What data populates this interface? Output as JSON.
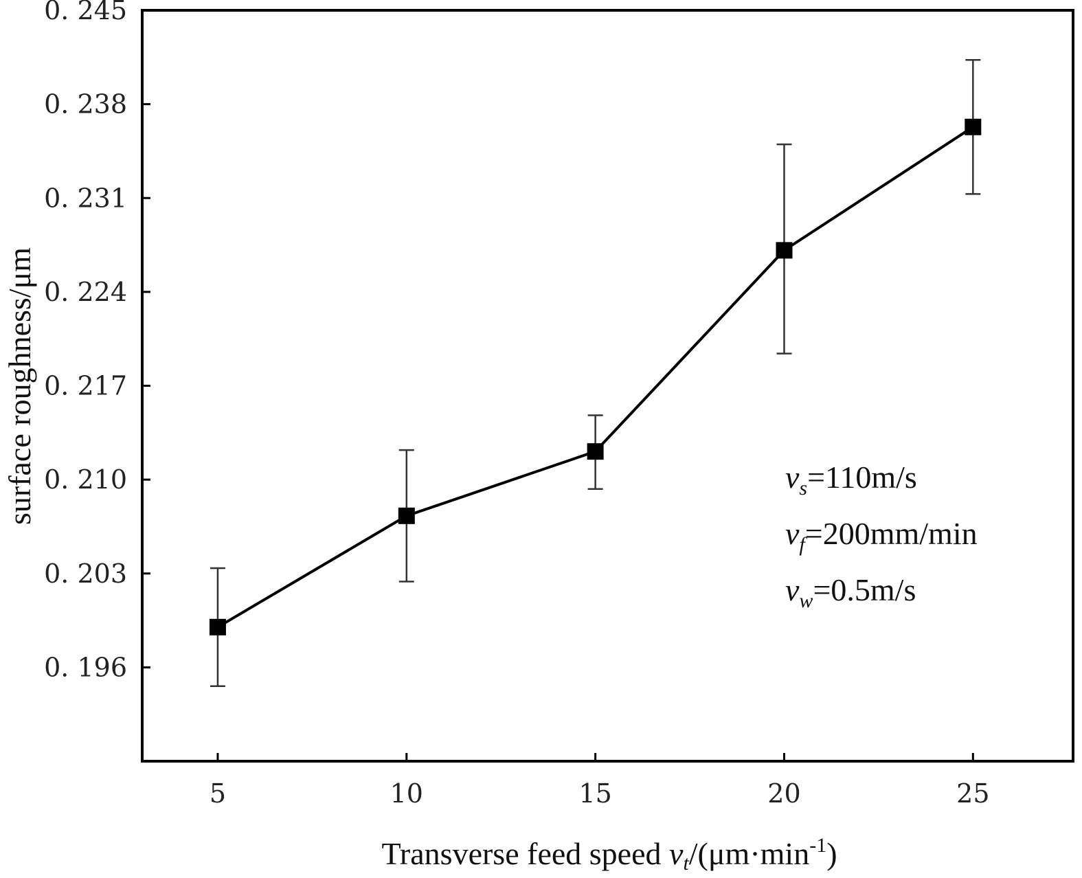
{
  "chart_data": {
    "type": "line",
    "title": "",
    "xlabel": {
      "main": "Transverse feed speed ",
      "symbol": "v",
      "symbol_sub": "t",
      "unit_pre": "/(μm·min",
      "unit_sup": "-1",
      "unit_post": ")"
    },
    "ylabel": "surface roughness/μm",
    "xlim": [
      3,
      27.65
    ],
    "ylim": [
      0.189,
      0.245
    ],
    "xticks": [
      5,
      10,
      15,
      20,
      25
    ],
    "xtick_labels": [
      "5",
      "10",
      "15",
      "20",
      "25"
    ],
    "yticks": [
      0.196,
      0.203,
      0.21,
      0.217,
      0.224,
      0.231,
      0.238,
      0.245
    ],
    "ytick_labels": [
      "0. 196",
      "0. 203",
      "0. 210",
      "0. 217",
      "0. 224",
      "0. 231",
      "0. 238",
      "0. 245"
    ],
    "grid": false,
    "legend": "none",
    "series": [
      {
        "x": [
          5,
          10,
          15,
          20,
          25
        ],
        "y": [
          0.199,
          0.2073,
          0.2121,
          0.2271,
          0.2363
        ],
        "err_low": [
          0.1946,
          0.2024,
          0.2093,
          0.2194,
          0.2313
        ],
        "err_high": [
          0.2034,
          0.2122,
          0.2148,
          0.235,
          0.2413
        ],
        "marker": "square",
        "color": "#000000"
      }
    ],
    "annotations": [
      {
        "symbol": "v",
        "sub": "s",
        "text": "=110m/s"
      },
      {
        "symbol": "v",
        "sub": "f",
        "text": "=200mm/min"
      },
      {
        "symbol": "v",
        "sub": "w",
        "text": "=0.5m/s"
      }
    ]
  }
}
